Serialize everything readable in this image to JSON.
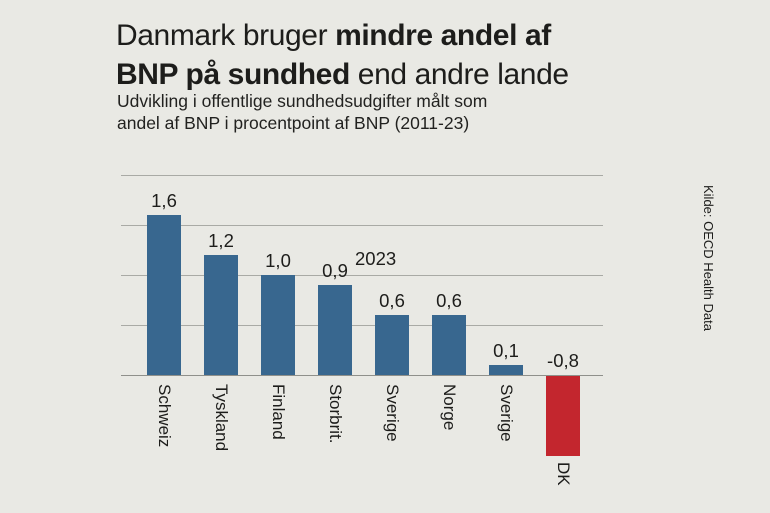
{
  "background": "#e9e9e4",
  "title": {
    "lines": [
      {
        "normal_before": "Danmark bruger ",
        "bold": "mindre andel af",
        "normal_after": ""
      },
      {
        "normal_before": "",
        "bold": "BNP på sundhed",
        "normal_after": " end andre lande"
      }
    ]
  },
  "subtitle_lines": [
    "Udvikling i offentlige sundhedsudgifter målt som",
    "andel af BNP i procentpoint af BNP (2011-23)"
  ],
  "source": "Kilde: OECD Health Data",
  "chart_data": {
    "type": "bar",
    "title": "Danmark bruger mindre andel af BNP på sundhed end andre lande",
    "subtitle": "Udvikling i offentlige sundhedsudgifter målt som andel af BNP i procentpoint af BNP (2011-23)",
    "categories": [
      "Schweiz",
      "Tyskland",
      "Finland",
      "Storbrit.",
      "Sverige",
      "Norge",
      "Sverige",
      "DK"
    ],
    "values": [
      1.6,
      1.2,
      1.0,
      0.9,
      0.6,
      0.6,
      0.1,
      -0.8
    ],
    "value_labels": [
      "1,6",
      "1,2",
      "1,0",
      "0,9",
      "0,6",
      "0,6",
      "0,1",
      "-0,8"
    ],
    "annotation": "2023",
    "highlight_index": 7,
    "xlabel": "",
    "ylabel": "",
    "ylim": [
      0,
      2
    ],
    "grid_step": 0.5,
    "legend": "none",
    "colors": {
      "bar": "#38678f",
      "highlight": "#c3262e",
      "gridline": "#a9aaa5",
      "baseline": "#8f908b",
      "text": "#1d1d1b",
      "background": "#e9e9e4"
    }
  }
}
